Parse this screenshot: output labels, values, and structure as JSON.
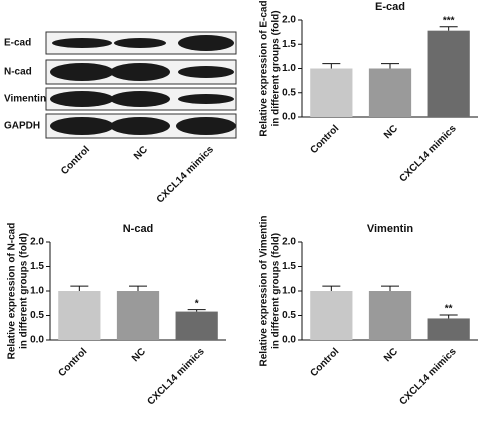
{
  "blot": {
    "rows": [
      "E-cad",
      "N-cad",
      "Vimentin",
      "GAPDH"
    ],
    "lanes": [
      "Control",
      "NC",
      "CXCL14 mimics"
    ]
  },
  "chart_data": [
    {
      "type": "bar",
      "title": "E-cad",
      "ylabel": [
        "Relative expression of E-cad",
        "in different groups (fold)"
      ],
      "categories": [
        "Control",
        "NC",
        "CXCL14 mimics"
      ],
      "values": [
        1.0,
        1.0,
        1.78
      ],
      "errors": [
        0.1,
        0.1,
        0.08
      ],
      "significance": [
        null,
        null,
        "***"
      ],
      "colors": [
        "#c8c8c8",
        "#9a9a9a",
        "#6b6b6b"
      ],
      "ylim": [
        0,
        2
      ],
      "yticks": [
        {
          "value": 0,
          "label": "0.0"
        },
        {
          "value": 0.5,
          "label": "0.5"
        },
        {
          "value": 1,
          "label": "1.0"
        },
        {
          "value": 1.5,
          "label": "1.5"
        },
        {
          "value": 2,
          "label": "2.0"
        }
      ]
    },
    {
      "type": "bar",
      "title": "N-cad",
      "ylabel": [
        "Relative expression of N-cad",
        "in different groups (fold)"
      ],
      "categories": [
        "Control",
        "NC",
        "CXCL14 mimics"
      ],
      "values": [
        1.0,
        1.0,
        0.58
      ],
      "errors": [
        0.1,
        0.1,
        0.04
      ],
      "significance": [
        null,
        null,
        "*"
      ],
      "colors": [
        "#c8c8c8",
        "#9a9a9a",
        "#6b6b6b"
      ],
      "ylim": [
        0,
        2
      ],
      "yticks": [
        {
          "value": 0,
          "label": "0.0"
        },
        {
          "value": 0.5,
          "label": "0.5"
        },
        {
          "value": 1,
          "label": "1.0"
        },
        {
          "value": 1.5,
          "label": "1.5"
        },
        {
          "value": 2,
          "label": "2.0"
        }
      ]
    },
    {
      "type": "bar",
      "title": "Vimentin",
      "ylabel": [
        "Relative expression of Vimentin",
        "in different groups (fold)"
      ],
      "categories": [
        "Control",
        "NC",
        "CXCL14 mimics"
      ],
      "values": [
        1.0,
        1.0,
        0.44
      ],
      "errors": [
        0.1,
        0.1,
        0.07
      ],
      "significance": [
        null,
        null,
        "**"
      ],
      "colors": [
        "#c8c8c8",
        "#9a9a9a",
        "#6b6b6b"
      ],
      "ylim": [
        0,
        2
      ],
      "yticks": [
        {
          "value": 0,
          "label": "0.0"
        },
        {
          "value": 0.5,
          "label": "0.5"
        },
        {
          "value": 1,
          "label": "1.0"
        },
        {
          "value": 1.5,
          "label": "1.5"
        },
        {
          "value": 2,
          "label": "2.0"
        }
      ]
    }
  ]
}
